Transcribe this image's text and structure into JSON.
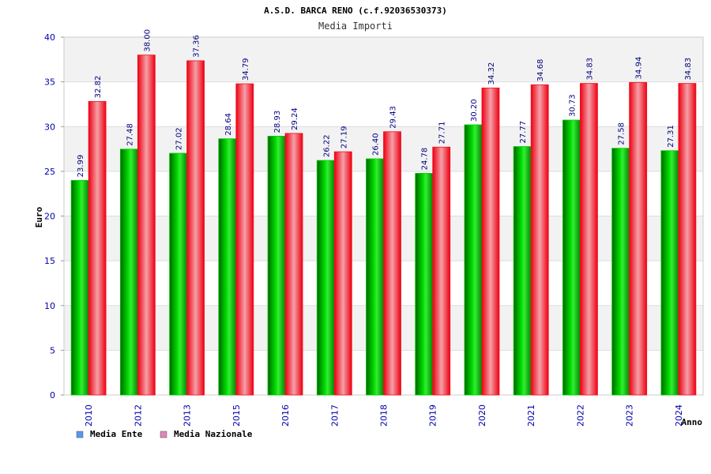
{
  "chart_data": {
    "type": "bar",
    "title": "A.S.D. BARCA RENO (c.f.92036530373)",
    "subtitle": "Media Importi",
    "ylabel": "Euro",
    "xlabel": "Anno",
    "ylim": [
      0,
      40
    ],
    "yticks": [
      "0",
      "5",
      "10",
      "15",
      "20",
      "25",
      "30",
      "35",
      "40"
    ],
    "categories": [
      "2010",
      "2012",
      "2013",
      "2015",
      "2016",
      "2017",
      "2018",
      "2019",
      "2020",
      "2021",
      "2022",
      "2023",
      "2024"
    ],
    "series": [
      {
        "name": "Media Ente",
        "values": [
          23.99,
          27.48,
          27.02,
          28.64,
          28.93,
          26.22,
          26.4,
          24.78,
          30.2,
          27.77,
          30.73,
          27.58,
          27.31
        ],
        "labels": [
          "23.99",
          "27.48",
          "27.02",
          "28.64",
          "28.93",
          "26.22",
          "26.40",
          "24.78",
          "30.20",
          "27.77",
          "30.73",
          "27.58",
          "27.31"
        ]
      },
      {
        "name": "Media Nazionale",
        "values": [
          32.82,
          38.0,
          37.36,
          34.79,
          29.24,
          27.19,
          29.43,
          27.71,
          34.32,
          34.68,
          34.83,
          34.94,
          34.83
        ],
        "labels": [
          "32.82",
          "38.00",
          "37.36",
          "34.79",
          "29.24",
          "27.19",
          "29.43",
          "27.71",
          "34.32",
          "34.68",
          "34.83",
          "34.94",
          "34.83"
        ]
      }
    ],
    "legend": [
      "Media Ente",
      "Media Nazionale"
    ],
    "legend_position": "bottom-left",
    "grid": true,
    "colors": {
      "ente": "#00cc00",
      "nazionale": "#ee1122",
      "legend_ente": "#5599ee",
      "legend_nazionale": "#dd88bb",
      "band": "#f2f2f2",
      "axis_text": "#0000aa",
      "label_text": "#000080"
    }
  }
}
